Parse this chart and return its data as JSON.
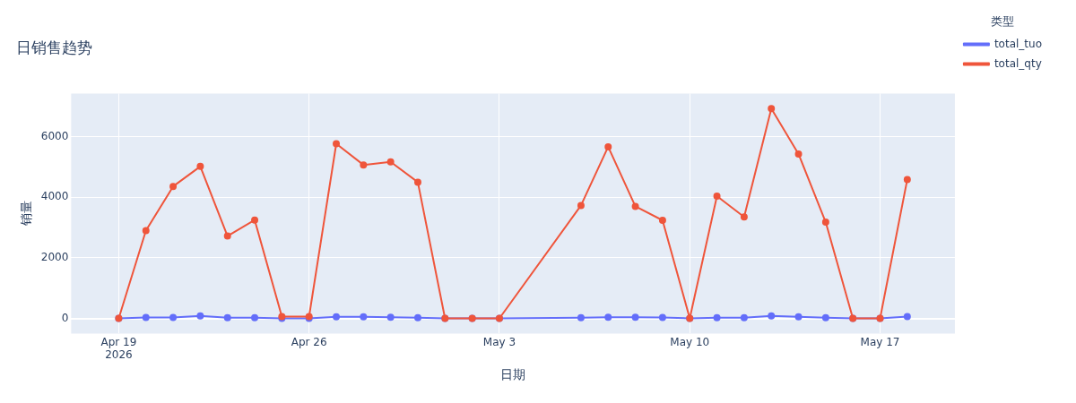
{
  "chart_data": {
    "type": "line",
    "title": "日销售趋势",
    "xlabel": "日期",
    "ylabel": "销量",
    "legend_title": "类型",
    "x": [
      "2026-04-19",
      "2026-04-20",
      "2026-04-21",
      "2026-04-22",
      "2026-04-23",
      "2026-04-24",
      "2026-04-25",
      "2026-04-26",
      "2026-04-27",
      "2026-04-28",
      "2026-04-29",
      "2026-04-30",
      "2026-05-01",
      "2026-05-02",
      "2026-05-03",
      "2026-05-06",
      "2026-05-07",
      "2026-05-08",
      "2026-05-09",
      "2026-05-10",
      "2026-05-11",
      "2026-05-12",
      "2026-05-13",
      "2026-05-14",
      "2026-05-15",
      "2026-05-16",
      "2026-05-17",
      "2026-05-18"
    ],
    "series": [
      {
        "name": "total_tuo",
        "color": "#636efa",
        "values": [
          0,
          30,
          30,
          80,
          20,
          20,
          0,
          0,
          50,
          50,
          40,
          20,
          0,
          0,
          0,
          20,
          40,
          40,
          30,
          0,
          20,
          20,
          80,
          50,
          20,
          0,
          0,
          60
        ]
      },
      {
        "name": "total_qty",
        "color": "#ef553b",
        "values": [
          0,
          2900,
          4360,
          5020,
          2720,
          3250,
          60,
          60,
          5770,
          5070,
          5170,
          4500,
          0,
          0,
          0,
          3730,
          5670,
          3700,
          3240,
          0,
          4040,
          3350,
          6930,
          5430,
          3180,
          0,
          0,
          4590
        ]
      }
    ],
    "xlim": [
      "2026-04-17T06:00",
      "2026-05-19T18:00"
    ],
    "xticks": [
      {
        "value": "2026-04-19",
        "label": "Apr 19\n2026"
      },
      {
        "value": "2026-04-26",
        "label": "Apr 26"
      },
      {
        "value": "2026-05-03",
        "label": "May 3"
      },
      {
        "value": "2026-05-10",
        "label": "May 10"
      },
      {
        "value": "2026-05-17",
        "label": "May 17"
      }
    ],
    "ylim": [
      -500,
      7430
    ],
    "yticks": [
      0,
      2000,
      4000,
      6000
    ],
    "grid": true,
    "legend": "top right",
    "marker": "circle",
    "line_style": "solid"
  }
}
